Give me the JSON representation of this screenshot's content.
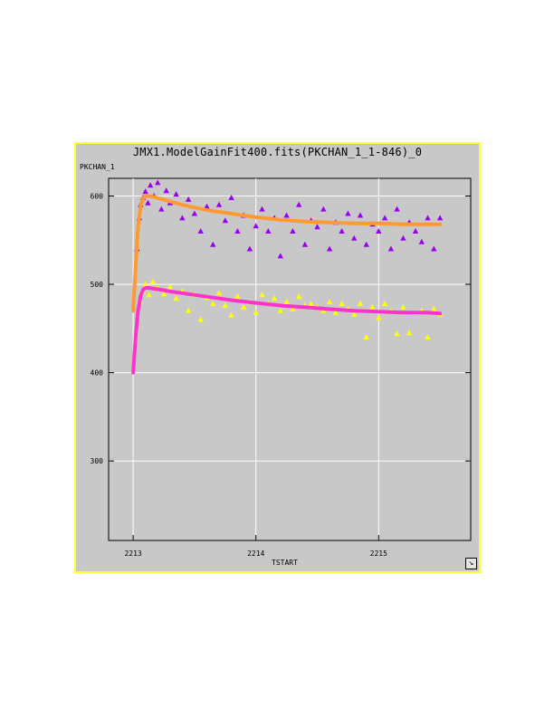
{
  "window": {
    "title": "JMX1.ModelGainFit400.fits(PKCHAN_1_1-846)_0"
  },
  "colors": {
    "panel_bg": "#c8c8c8",
    "panel_border": "#ffff33",
    "grid": "#ffffff",
    "series1_points": "#9900ee",
    "series1_fit": "#ff9933",
    "series2_points": "#ffff00",
    "series2_fit": "#ff33cc"
  },
  "icons": {
    "resize": "resize-corner-icon"
  },
  "chart_data": {
    "type": "scatter",
    "title": "JMX1.ModelGainFit400.fits(PKCHAN_1_1-846)_0",
    "xlabel": "TSTART",
    "ylabel": "PKCHAN_1",
    "xlim": [
      2212.8,
      2215.75
    ],
    "ylim": [
      210,
      620
    ],
    "x_ticks": [
      2213,
      2214,
      2215
    ],
    "y_ticks": [
      300,
      400,
      500,
      600
    ],
    "grid": true,
    "legend": "none",
    "series": [
      {
        "kind": "points",
        "marker": "triangle",
        "color": "#9900ee",
        "x": [
          2213.03,
          2213.05,
          2213.06,
          2213.08,
          2213.1,
          2213.12,
          2213.14,
          2213.17,
          2213.2,
          2213.23,
          2213.27,
          2213.3,
          2213.35,
          2213.4,
          2213.45,
          2213.5,
          2213.55,
          2213.6,
          2213.65,
          2213.7,
          2213.75,
          2213.8,
          2213.85,
          2213.9,
          2213.95,
          2214.0,
          2214.05,
          2214.1,
          2214.15,
          2214.2,
          2214.25,
          2214.3,
          2214.35,
          2214.4,
          2214.45,
          2214.5,
          2214.55,
          2214.6,
          2214.65,
          2214.7,
          2214.75,
          2214.8,
          2214.85,
          2214.9,
          2214.95,
          2215.0,
          2215.05,
          2215.1,
          2215.15,
          2215.2,
          2215.25,
          2215.3,
          2215.35,
          2215.4,
          2215.45,
          2215.5
        ],
        "y": [
          540,
          575,
          590,
          598,
          605,
          592,
          612,
          600,
          615,
          585,
          606,
          592,
          602,
          575,
          596,
          580,
          560,
          588,
          545,
          590,
          572,
          598,
          560,
          578,
          540,
          566,
          585,
          560,
          575,
          532,
          578,
          560,
          590,
          545,
          572,
          565,
          585,
          540,
          570,
          560,
          580,
          552,
          578,
          545,
          568,
          560,
          575,
          540,
          585,
          552,
          570,
          560,
          548,
          575,
          540,
          575
        ]
      },
      {
        "kind": "fit",
        "marker": "line",
        "color": "#ff9933",
        "x": [
          2213.0,
          2213.02,
          2213.04,
          2213.06,
          2213.08,
          2213.1,
          2213.13,
          2213.17,
          2213.22,
          2213.3,
          2213.4,
          2213.5,
          2213.6,
          2213.8,
          2214.0,
          2214.2,
          2214.4,
          2214.6,
          2214.8,
          2215.0,
          2215.2,
          2215.4,
          2215.5
        ],
        "y": [
          470,
          520,
          565,
          588,
          597,
          600,
          600,
          599,
          597,
          594,
          590,
          587,
          584,
          580,
          576,
          573,
          571,
          570,
          569,
          569,
          568,
          568,
          568
        ]
      },
      {
        "kind": "points",
        "marker": "triangle",
        "color": "#ffff00",
        "x": [
          2213.05,
          2213.08,
          2213.1,
          2213.13,
          2213.16,
          2213.2,
          2213.25,
          2213.3,
          2213.35,
          2213.4,
          2213.45,
          2213.5,
          2213.55,
          2213.6,
          2213.65,
          2213.7,
          2213.75,
          2213.8,
          2213.85,
          2213.9,
          2213.95,
          2214.0,
          2214.05,
          2214.1,
          2214.15,
          2214.2,
          2214.25,
          2214.3,
          2214.35,
          2214.4,
          2214.45,
          2214.5,
          2214.55,
          2214.6,
          2214.65,
          2214.7,
          2214.75,
          2214.8,
          2214.85,
          2214.9,
          2214.95,
          2215.0,
          2215.05,
          2215.1,
          2215.15,
          2215.2,
          2215.25,
          2215.3,
          2215.35,
          2215.4,
          2215.45,
          2215.5
        ],
        "y": [
          480,
          492,
          500,
          488,
          503,
          495,
          489,
          497,
          484,
          492,
          470,
          488,
          460,
          485,
          478,
          490,
          476,
          465,
          486,
          474,
          480,
          468,
          488,
          478,
          484,
          470,
          480,
          472,
          486,
          476,
          478,
          474,
          470,
          480,
          468,
          478,
          472,
          466,
          478,
          440,
          474,
          462,
          478,
          470,
          444,
          474,
          445,
          468,
          470,
          440,
          472,
          466
        ]
      },
      {
        "kind": "fit",
        "marker": "line",
        "color": "#ff33cc",
        "x": [
          2213.0,
          2213.02,
          2213.04,
          2213.06,
          2213.08,
          2213.1,
          2213.13,
          2213.17,
          2213.22,
          2213.3,
          2213.4,
          2213.5,
          2213.6,
          2213.8,
          2214.0,
          2214.2,
          2214.4,
          2214.6,
          2214.8,
          2215.0,
          2215.2,
          2215.4,
          2215.5
        ],
        "y": [
          400,
          440,
          470,
          487,
          494,
          496,
          496,
          495,
          494,
          492,
          490,
          488,
          486,
          482,
          479,
          476,
          474,
          472,
          470,
          469,
          468,
          468,
          467
        ]
      }
    ]
  }
}
